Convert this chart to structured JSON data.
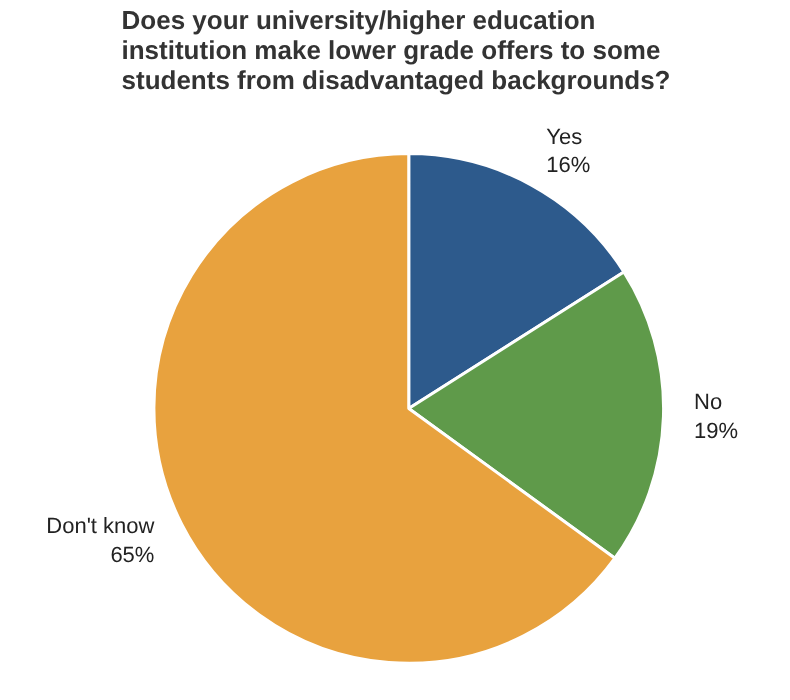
{
  "chart_data": {
    "type": "pie",
    "title": "Does your university/higher education institution make lower grade offers to some students from disadvantaged backgrounds?",
    "categories": [
      "Yes",
      "No",
      "Don't know"
    ],
    "values": [
      16,
      19,
      65
    ],
    "value_labels": [
      "16%",
      "19%",
      "65%"
    ],
    "colors": [
      "#2d5a8c",
      "#5f9a4a",
      "#e8a23e"
    ]
  }
}
